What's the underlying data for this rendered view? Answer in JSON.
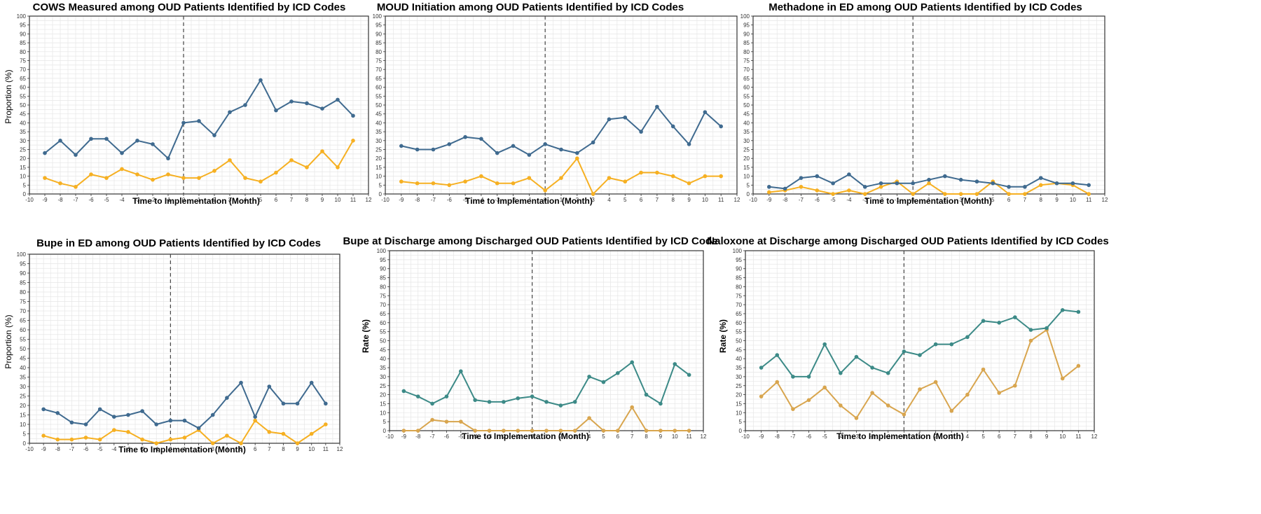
{
  "chart_data": [
    {
      "type": "line",
      "title": "COWS Measured among OUD Patients Identified by ICD Codes",
      "xlabel": "Time to Implementation (Month)",
      "ylabel": "Proportion (%)",
      "xlim": [
        -10,
        12
      ],
      "ylim": [
        0,
        100
      ],
      "x_ticks": [
        -10,
        -9,
        -8,
        -7,
        -6,
        -5,
        -4,
        -3,
        -2,
        -1,
        0,
        1,
        2,
        3,
        4,
        5,
        6,
        7,
        8,
        9,
        10,
        11,
        12
      ],
      "y_ticks": [
        0,
        5,
        10,
        15,
        20,
        25,
        30,
        35,
        40,
        45,
        50,
        55,
        60,
        65,
        70,
        75,
        80,
        85,
        90,
        95,
        100
      ],
      "implementation_line": 0,
      "grid": true,
      "colors": [
        "#3f6a8f",
        "#f6b022"
      ],
      "x": [
        -9,
        -8,
        -7,
        -6,
        -5,
        -4,
        -3,
        -2,
        -1,
        0,
        1,
        2,
        3,
        4,
        5,
        6,
        7,
        8,
        9,
        10,
        11
      ],
      "series": [
        {
          "values": [
            23,
            30,
            22,
            31,
            31,
            23,
            30,
            28,
            20,
            40,
            41,
            33,
            46,
            50,
            64,
            47,
            52,
            51,
            48,
            53,
            44
          ]
        },
        {
          "values": [
            9,
            6,
            4,
            11,
            9,
            14,
            11,
            8,
            11,
            9,
            9,
            13,
            19,
            9,
            7,
            12,
            19,
            15,
            24,
            15,
            30
          ]
        }
      ]
    },
    {
      "type": "line",
      "title": "MOUD Initiation among OUD Patients Identified by ICD Codes",
      "xlabel": "Time to Implementation (Month)",
      "ylabel": "",
      "xlim": [
        -10,
        12
      ],
      "ylim": [
        0,
        100
      ],
      "x_ticks": [
        -10,
        -9,
        -8,
        -7,
        -6,
        -5,
        -4,
        -3,
        -2,
        -1,
        0,
        1,
        2,
        3,
        4,
        5,
        6,
        7,
        8,
        9,
        10,
        11,
        12
      ],
      "y_ticks": [
        0,
        5,
        10,
        15,
        20,
        25,
        30,
        35,
        40,
        45,
        50,
        55,
        60,
        65,
        70,
        75,
        80,
        85,
        90,
        95,
        100
      ],
      "implementation_line": 0,
      "grid": true,
      "colors": [
        "#3f6a8f",
        "#f6b022"
      ],
      "x": [
        -9,
        -8,
        -7,
        -6,
        -5,
        -4,
        -3,
        -2,
        -1,
        0,
        1,
        2,
        3,
        4,
        5,
        6,
        7,
        8,
        9,
        10,
        11
      ],
      "series": [
        {
          "values": [
            27,
            25,
            25,
            28,
            32,
            31,
            23,
            27,
            22,
            28,
            25,
            23,
            29,
            42,
            43,
            35,
            49,
            38,
            28,
            46,
            38
          ]
        },
        {
          "values": [
            7,
            6,
            6,
            5,
            7,
            10,
            6,
            6,
            9,
            2,
            9,
            20,
            0,
            9,
            7,
            12,
            12,
            10,
            6,
            10,
            10
          ]
        }
      ]
    },
    {
      "type": "line",
      "title": "Methadone in ED among OUD Patients Identified by ICD Codes",
      "xlabel": "Time to Implementation (Month)",
      "ylabel": "",
      "xlim": [
        -10,
        12
      ],
      "ylim": [
        0,
        100
      ],
      "x_ticks": [
        -10,
        -9,
        -8,
        -7,
        -6,
        -5,
        -4,
        -3,
        -2,
        -1,
        0,
        1,
        2,
        3,
        4,
        5,
        6,
        7,
        8,
        9,
        10,
        11,
        12
      ],
      "y_ticks": [
        0,
        5,
        10,
        15,
        20,
        25,
        30,
        35,
        40,
        45,
        50,
        55,
        60,
        65,
        70,
        75,
        80,
        85,
        90,
        95,
        100
      ],
      "implementation_line": 0,
      "grid": true,
      "colors": [
        "#3f6a8f",
        "#f6b022"
      ],
      "x": [
        -9,
        -8,
        -7,
        -6,
        -5,
        -4,
        -3,
        -2,
        -1,
        0,
        1,
        2,
        3,
        4,
        5,
        6,
        7,
        8,
        9,
        10,
        11
      ],
      "series": [
        {
          "values": [
            4,
            3,
            9,
            10,
            6,
            11,
            4,
            6,
            6,
            6,
            8,
            10,
            8,
            7,
            6,
            4,
            4,
            9,
            6,
            6,
            5
          ]
        },
        {
          "values": [
            1,
            2,
            4,
            2,
            0,
            2,
            0,
            4,
            7,
            0,
            6,
            0,
            0,
            0,
            7,
            0,
            0,
            5,
            6,
            5,
            0
          ]
        }
      ]
    },
    {
      "type": "line",
      "title": "Bupe in ED among OUD Patients Identified by ICD Codes",
      "xlabel": "Time to Implementation (Month)",
      "ylabel": "Proportion (%)",
      "xlim": [
        -10,
        12
      ],
      "ylim": [
        0,
        100
      ],
      "x_ticks": [
        -10,
        -9,
        -8,
        -7,
        -6,
        -5,
        -4,
        -3,
        -2,
        -1,
        0,
        1,
        2,
        3,
        4,
        5,
        6,
        7,
        8,
        9,
        10,
        11,
        12
      ],
      "y_ticks": [
        0,
        5,
        10,
        15,
        20,
        25,
        30,
        35,
        40,
        45,
        50,
        55,
        60,
        65,
        70,
        75,
        80,
        85,
        90,
        95,
        100
      ],
      "implementation_line": 0,
      "grid": true,
      "colors": [
        "#3f6a8f",
        "#f6b022"
      ],
      "x": [
        -9,
        -8,
        -7,
        -6,
        -5,
        -4,
        -3,
        -2,
        -1,
        0,
        1,
        2,
        3,
        4,
        5,
        6,
        7,
        8,
        9,
        10,
        11
      ],
      "series": [
        {
          "values": [
            18,
            16,
            11,
            10,
            18,
            14,
            15,
            17,
            10,
            12,
            12,
            8,
            15,
            24,
            32,
            14,
            30,
            21,
            21,
            32,
            21
          ]
        },
        {
          "values": [
            4,
            2,
            2,
            3,
            2,
            7,
            6,
            2,
            0,
            2,
            3,
            7,
            0,
            4,
            0,
            12,
            6,
            5,
            0,
            5,
            10
          ]
        }
      ]
    },
    {
      "type": "line",
      "title": "Bupe at Discharge among Discharged OUD Patients Identified by ICD Code",
      "xlabel": "Time to Implementation (Month)",
      "ylabel": "Rate (%)",
      "xlim": [
        -10,
        12
      ],
      "ylim": [
        0,
        100
      ],
      "x_ticks": [
        -10,
        -9,
        -8,
        -7,
        -6,
        -5,
        -4,
        -3,
        -2,
        -1,
        0,
        1,
        2,
        3,
        4,
        5,
        6,
        7,
        8,
        9,
        10,
        11,
        12
      ],
      "y_ticks": [
        0,
        5,
        10,
        15,
        20,
        25,
        30,
        35,
        40,
        45,
        50,
        55,
        60,
        65,
        70,
        75,
        80,
        85,
        90,
        95,
        100
      ],
      "implementation_line": 0,
      "grid": true,
      "colors": [
        "#3c8a87",
        "#d8a54e"
      ],
      "x": [
        -9,
        -8,
        -7,
        -6,
        -5,
        -4,
        -3,
        -2,
        -1,
        0,
        1,
        2,
        3,
        4,
        5,
        6,
        7,
        8,
        9,
        10,
        11
      ],
      "series": [
        {
          "values": [
            22,
            19,
            15,
            19,
            33,
            17,
            16,
            16,
            18,
            19,
            16,
            14,
            16,
            30,
            27,
            32,
            38,
            20,
            15,
            37,
            31
          ]
        },
        {
          "values": [
            0,
            0,
            6,
            5,
            5,
            0,
            0,
            0,
            0,
            0,
            0,
            0,
            0,
            7,
            0,
            0,
            13,
            0,
            0,
            0,
            0
          ]
        }
      ]
    },
    {
      "type": "line",
      "title": "Naloxone at Discharge among Discharged OUD Patients Identified by ICD Codes",
      "xlabel": "Time to Implementation (Month)",
      "ylabel": "Rate (%)",
      "xlim": [
        -10,
        12
      ],
      "ylim": [
        0,
        100
      ],
      "x_ticks": [
        -10,
        -9,
        -8,
        -7,
        -6,
        -5,
        -4,
        -3,
        -2,
        -1,
        0,
        1,
        2,
        3,
        4,
        5,
        6,
        7,
        8,
        9,
        10,
        11,
        12
      ],
      "y_ticks": [
        0,
        5,
        10,
        15,
        20,
        25,
        30,
        35,
        40,
        45,
        50,
        55,
        60,
        65,
        70,
        75,
        80,
        85,
        90,
        95,
        100
      ],
      "implementation_line": 0,
      "grid": true,
      "colors": [
        "#3c8a87",
        "#d8a54e"
      ],
      "x": [
        -9,
        -8,
        -7,
        -6,
        -5,
        -4,
        -3,
        -2,
        -1,
        0,
        1,
        2,
        3,
        4,
        5,
        6,
        7,
        8,
        9,
        10,
        11
      ],
      "series": [
        {
          "values": [
            35,
            42,
            30,
            30,
            48,
            32,
            41,
            35,
            32,
            44,
            42,
            48,
            48,
            52,
            61,
            60,
            63,
            56,
            57,
            67,
            66
          ]
        },
        {
          "values": [
            19,
            27,
            12,
            17,
            24,
            14,
            7,
            21,
            14,
            9,
            23,
            27,
            11,
            20,
            34,
            21,
            25,
            50,
            56,
            29,
            36
          ]
        }
      ]
    }
  ]
}
